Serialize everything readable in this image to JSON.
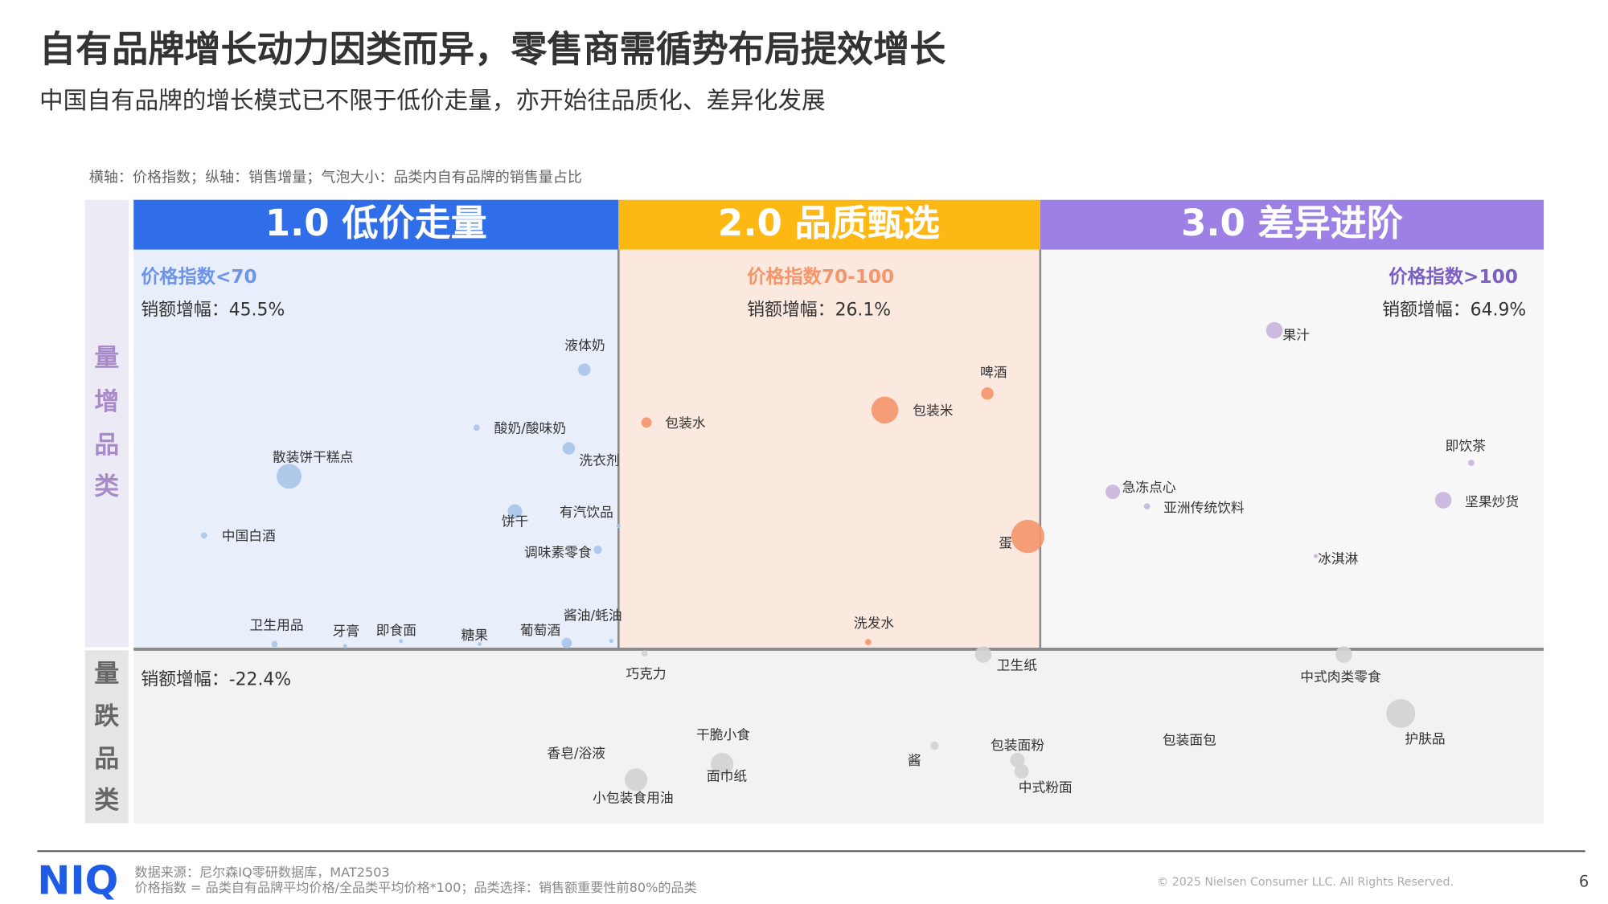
{
  "header": {
    "title": "自有品牌增长动力因类而异，零售商需循势布局提效增长",
    "subtitle": "中国自有品牌的增长模式已不限于低价走量，亦开始往品质化、差异化发展"
  },
  "note": "横轴：价格指数；纵轴：销售增量；气泡大小：品类内自有品牌的销售量占比",
  "side_labels": {
    "up": [
      "量",
      "增",
      "品",
      "类"
    ],
    "down": [
      "量",
      "跌",
      "品",
      "类"
    ]
  },
  "zones": [
    {
      "title": "1.0 低价走量",
      "price_index": "价格指数<70",
      "growth": "销额增幅：45.5%"
    },
    {
      "title": "2.0 品质甄选",
      "price_index": "价格指数70-100",
      "growth": "销额增幅：26.1%"
    },
    {
      "title": "3.0 差异进阶",
      "price_index": "价格指数>100",
      "growth": "销额增幅：64.9%"
    }
  ],
  "decline_growth": "销额增幅：-22.4%",
  "bubbles": [
    "液体奶",
    "酸奶/酸味奶",
    "洗衣剂",
    "散装饼干糕点",
    "饼干",
    "有汽饮品",
    "调味素零食",
    "中国白酒",
    "卫生用品",
    "牙膏",
    "即食面",
    "糖果",
    "葡萄酒",
    "酱油/蚝油",
    "包装水",
    "包装米",
    "啤酒",
    "蛋",
    "洗发水",
    "果汁",
    "即饮茶",
    "急冻点心",
    "亚洲传统饮料",
    "坚果炒货",
    "冰淇淋",
    "巧克力",
    "卫生纸",
    "中式肉类零食",
    "护肤品",
    "干脆小食",
    "香皂/浴液",
    "小包装食用油",
    "面巾纸",
    "酱",
    "包装面粉",
    "中式粉面",
    "包装面包"
  ],
  "footer": {
    "logo": "NIQ",
    "source": "数据来源：尼尔森IQ零研数据库，MAT2503",
    "definition": "价格指数 = 品类自有品牌平均价格/全品类平均价格*100；品类选择：销售额重要性前80%的品类",
    "copyright": "© 2025 Nielsen Consumer LLC. All Rights Reserved.",
    "page": "6"
  }
}
